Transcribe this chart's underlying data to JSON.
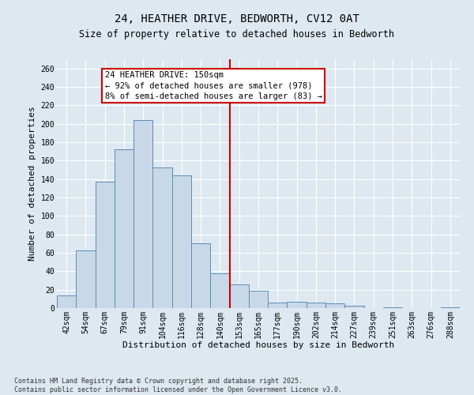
{
  "title_line1": "24, HEATHER DRIVE, BEDWORTH, CV12 0AT",
  "title_line2": "Size of property relative to detached houses in Bedworth",
  "xlabel": "Distribution of detached houses by size in Bedworth",
  "ylabel": "Number of detached properties",
  "footer_line1": "Contains HM Land Registry data © Crown copyright and database right 2025.",
  "footer_line2": "Contains public sector information licensed under the Open Government Licence v3.0.",
  "categories": [
    "42sqm",
    "54sqm",
    "67sqm",
    "79sqm",
    "91sqm",
    "104sqm",
    "116sqm",
    "128sqm",
    "140sqm",
    "153sqm",
    "165sqm",
    "177sqm",
    "190sqm",
    "202sqm",
    "214sqm",
    "227sqm",
    "239sqm",
    "251sqm",
    "263sqm",
    "276sqm",
    "288sqm"
  ],
  "values": [
    14,
    63,
    137,
    172,
    204,
    153,
    144,
    70,
    38,
    26,
    19,
    6,
    7,
    6,
    5,
    3,
    0,
    1,
    0,
    0,
    1
  ],
  "bar_color": "#c8d8e8",
  "bar_edge_color": "#5b8db8",
  "vline_x": 8.5,
  "vline_color": "#cc0000",
  "annotation_title": "24 HEATHER DRIVE: 150sqm",
  "annotation_line1": "← 92% of detached houses are smaller (978)",
  "annotation_line2": "8% of semi-detached houses are larger (83) →",
  "annotation_box_color": "#cc0000",
  "ylim": [
    0,
    270
  ],
  "yticks": [
    0,
    20,
    40,
    60,
    80,
    100,
    120,
    140,
    160,
    180,
    200,
    220,
    240,
    260
  ],
  "bg_color": "#dde8f0",
  "plot_bg_color": "#dde8f0",
  "grid_color": "#ffffff",
  "title_fontsize": 10,
  "subtitle_fontsize": 8.5,
  "ylabel_fontsize": 8,
  "xlabel_fontsize": 8,
  "tick_fontsize": 7,
  "annotation_fontsize": 7.5,
  "footer_fontsize": 6
}
